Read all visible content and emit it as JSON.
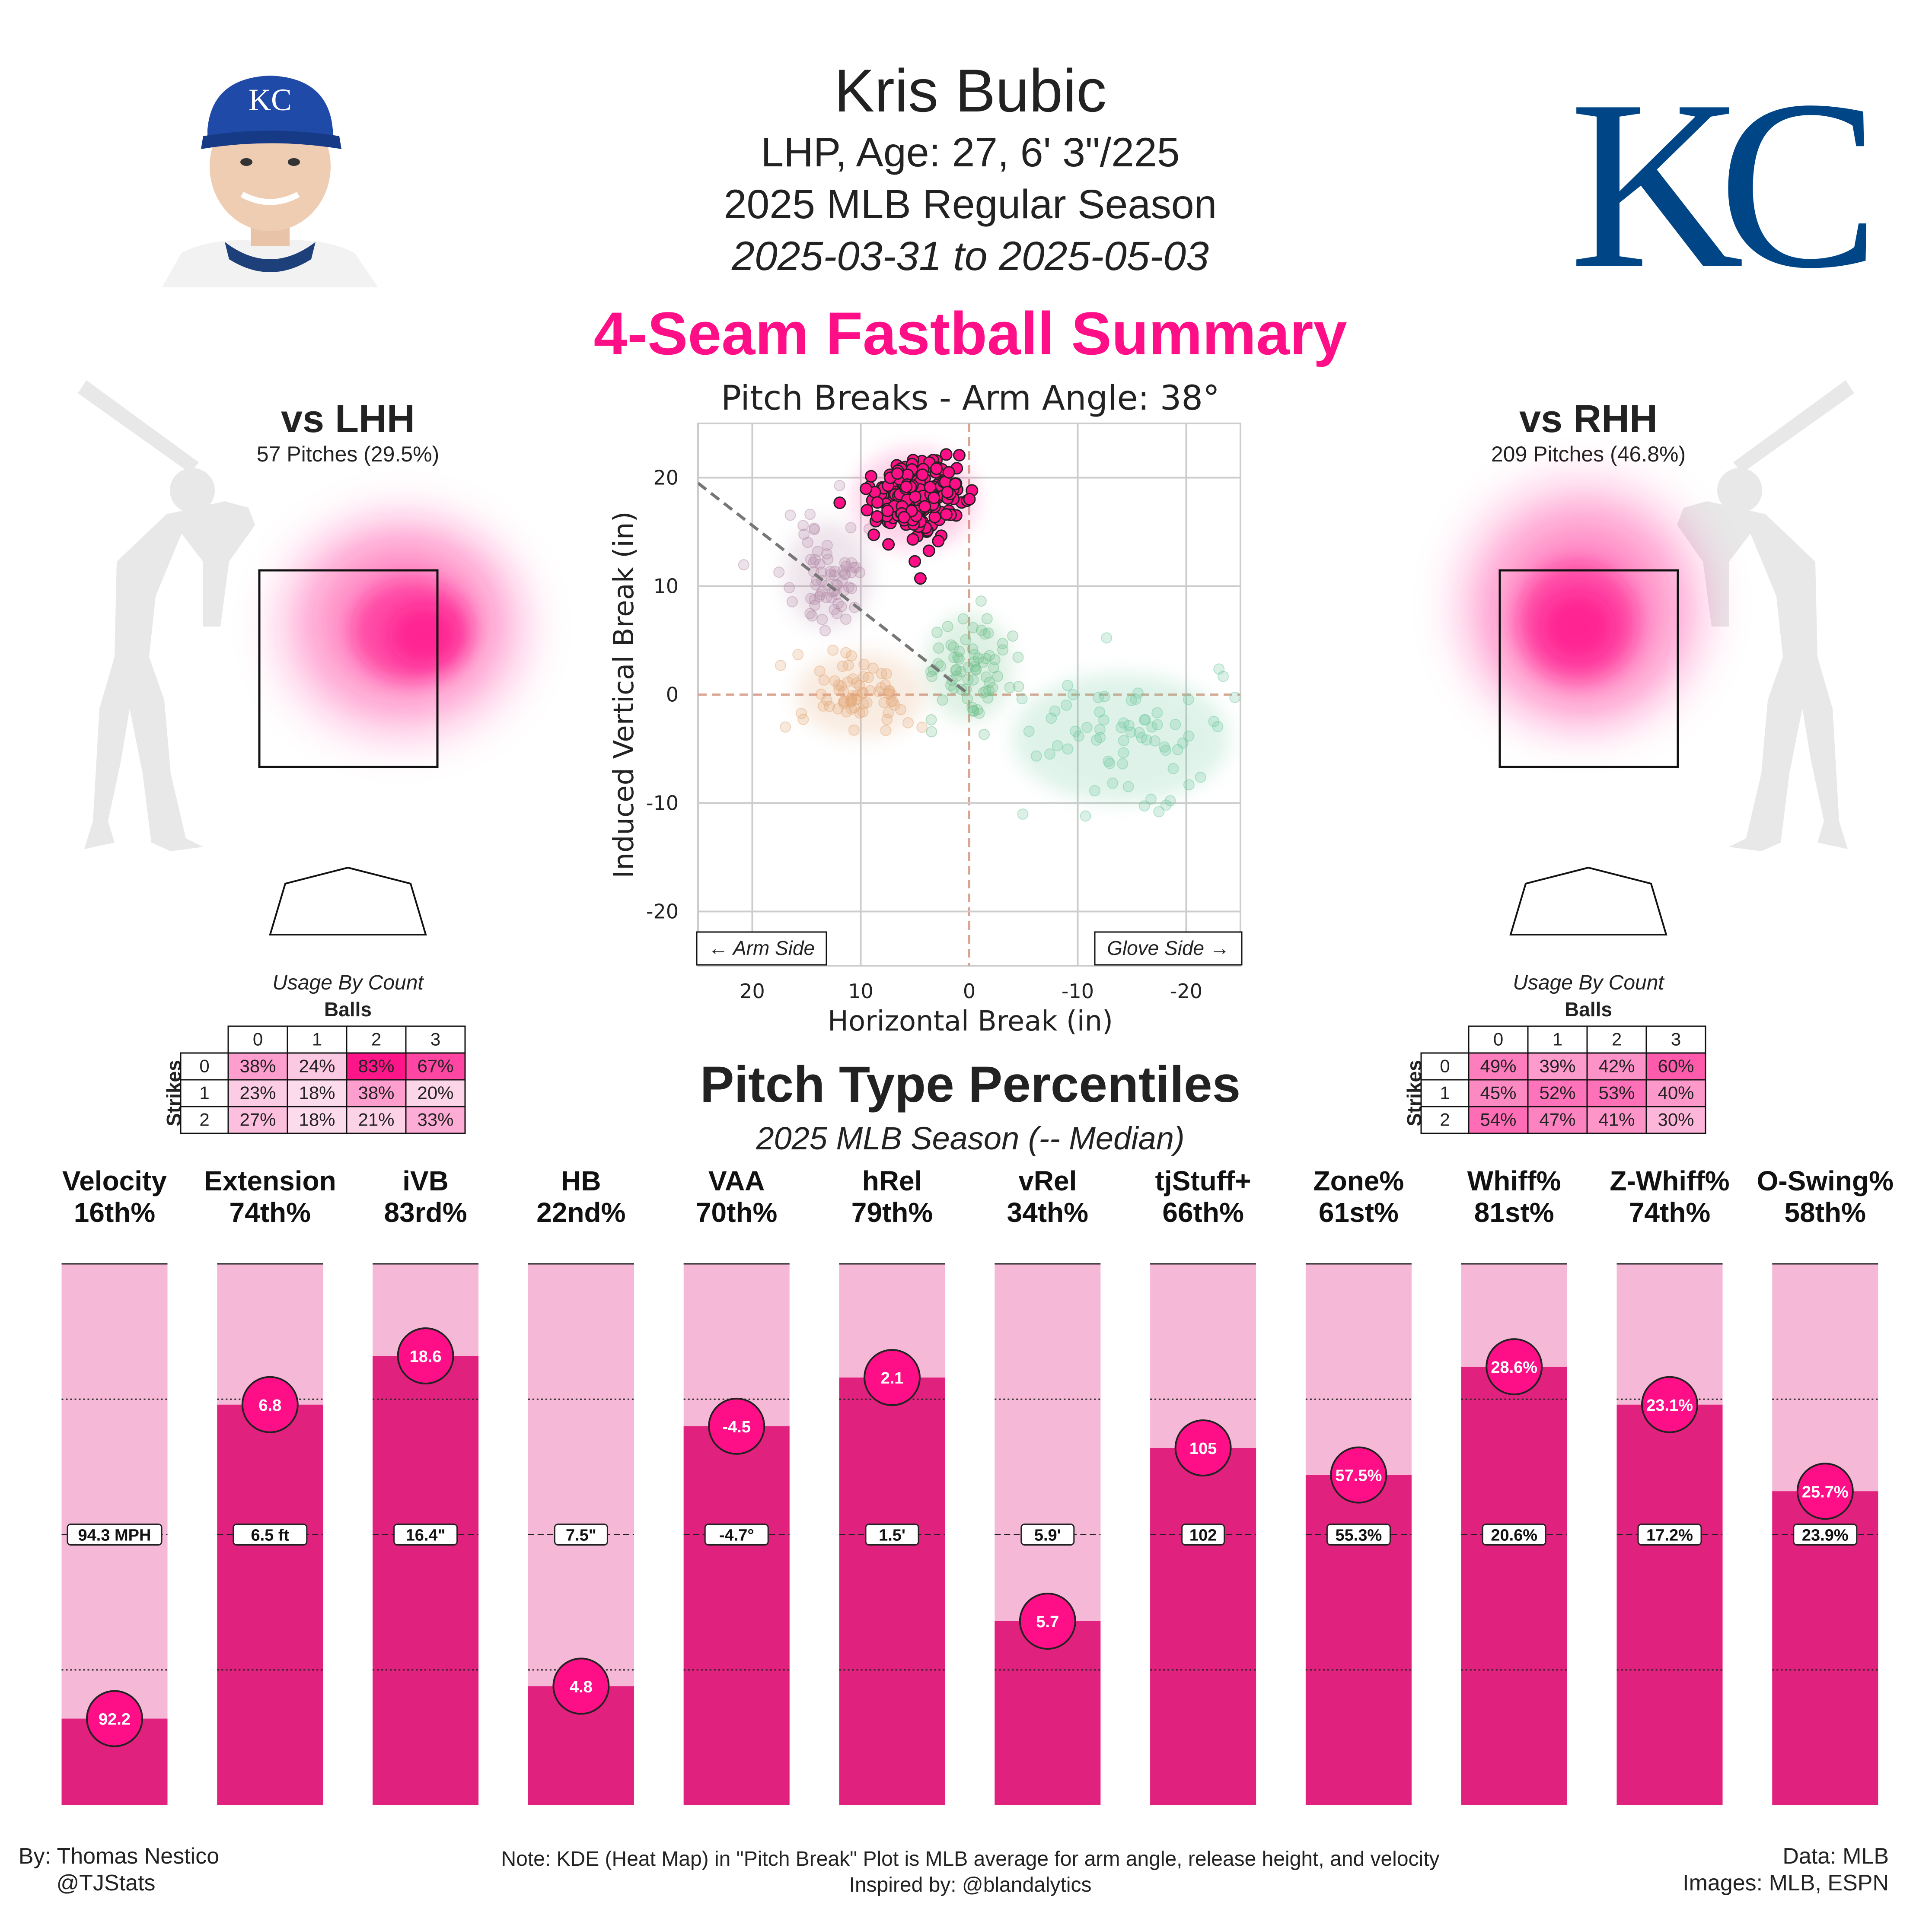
{
  "header": {
    "player_name": "Kris Bubic",
    "bio": "LHP, Age: 27, 6' 3\"/225",
    "season": "2025 MLB Regular Season",
    "date_range": "2025-03-31 to 2025-05-03",
    "team_logo_text": "KC",
    "cap_logo_text": "KC"
  },
  "summary_title": "4-Seam Fastball Summary",
  "colors": {
    "accent": "#ff0f87",
    "bar_fill": "#e0217d",
    "bar_bg": "#f5b8d6",
    "silhouette": "#e8e8e8",
    "team_blue": "#004687"
  },
  "lhh": {
    "title": "vs LHH",
    "pitches": "57 Pitches (29.5%)",
    "usage_title": "Usage By Count",
    "balls_label": "Balls",
    "strikes_label": "Strikes",
    "ball_headers": [
      "0",
      "1",
      "2",
      "3"
    ],
    "strike_headers": [
      "0",
      "1",
      "2"
    ],
    "usage": [
      [
        "38%",
        "24%",
        "83%",
        "67%"
      ],
      [
        "23%",
        "18%",
        "38%",
        "20%"
      ],
      [
        "27%",
        "18%",
        "21%",
        "33%"
      ]
    ]
  },
  "rhh": {
    "title": "vs RHH",
    "pitches": "209 Pitches (46.8%)",
    "usage_title": "Usage By Count",
    "balls_label": "Balls",
    "strikes_label": "Strikes",
    "ball_headers": [
      "0",
      "1",
      "2",
      "3"
    ],
    "strike_headers": [
      "0",
      "1",
      "2"
    ],
    "usage": [
      [
        "49%",
        "39%",
        "42%",
        "60%"
      ],
      [
        "45%",
        "52%",
        "53%",
        "40%"
      ],
      [
        "54%",
        "47%",
        "41%",
        "30%"
      ]
    ]
  },
  "chart_data": [
    {
      "type": "scatter",
      "title": "Pitch Breaks - Arm Angle: 38°",
      "xlabel": "Horizontal Break (in)",
      "ylabel": "Induced Vertical Break (in)",
      "xlim": [
        25,
        -25
      ],
      "ylim": [
        -25,
        25
      ],
      "xticks": [
        20,
        10,
        0,
        -10,
        -20
      ],
      "yticks": [
        20,
        10,
        0,
        -10,
        -20
      ],
      "grid": true,
      "arm_side_label": "← Arm Side",
      "glove_side_label": "Glove Side →",
      "arm_angle_line": {
        "from": [
          25,
          19.5
        ],
        "to": [
          0,
          0
        ]
      },
      "highlighted_pitch": {
        "name": "4-Seam Fastball",
        "center": [
          5,
          18
        ],
        "spread": [
          2.2,
          1.8
        ],
        "count": 209
      },
      "other_pitch_clusters": [
        {
          "center": [
            13,
            11
          ],
          "spread": [
            2,
            2.5
          ],
          "color": "#b48aa8"
        },
        {
          "center": [
            10,
            0
          ],
          "spread": [
            3,
            2
          ],
          "color": "#e3a878"
        },
        {
          "center": [
            0,
            2.5
          ],
          "spread": [
            2,
            2.5
          ],
          "color": "#6ebf8a"
        },
        {
          "center": [
            -14,
            -4
          ],
          "spread": [
            5,
            3
          ],
          "color": "#6ec9a0"
        }
      ]
    },
    {
      "type": "bar",
      "title": "Pitch Type Percentiles",
      "subtitle": "2025 MLB Season (-- Median)",
      "categories": [
        "Velocity",
        "Extension",
        "iVB",
        "HB",
        "VAA",
        "hRel",
        "vRel",
        "tjStuff+",
        "Zone%",
        "Whiff%",
        "Z-Whiff%",
        "O-Swing%"
      ],
      "percentile_labels": [
        "16th%",
        "74th%",
        "83rd%",
        "22nd%",
        "70th%",
        "79th%",
        "34th%",
        "66th%",
        "61st%",
        "81st%",
        "74th%",
        "58th%"
      ],
      "percentiles": [
        16,
        74,
        83,
        22,
        70,
        79,
        34,
        66,
        61,
        81,
        74,
        58
      ],
      "values": [
        "92.2",
        "6.8",
        "18.6",
        "4.8",
        "-4.5",
        "2.1",
        "5.7",
        "105",
        "57.5%",
        "28.6%",
        "23.1%",
        "25.7%"
      ],
      "medians": [
        "94.3 MPH",
        "6.5 ft",
        "16.4\"",
        "7.5\"",
        "-4.7°",
        "1.5'",
        "5.9'",
        "102",
        "55.3%",
        "20.6%",
        "17.2%",
        "23.9%"
      ],
      "ylim": [
        0,
        100
      ]
    }
  ],
  "footer": {
    "author": "By: Thomas Nestico",
    "handle": "@TJStats",
    "note": "Note: KDE (Heat Map) in \"Pitch Break\" Plot is MLB average for arm angle, release height, and velocity",
    "inspired": "Inspired by: @blandalytics",
    "data_source": "Data: MLB",
    "images_source": "Images: MLB, ESPN"
  }
}
